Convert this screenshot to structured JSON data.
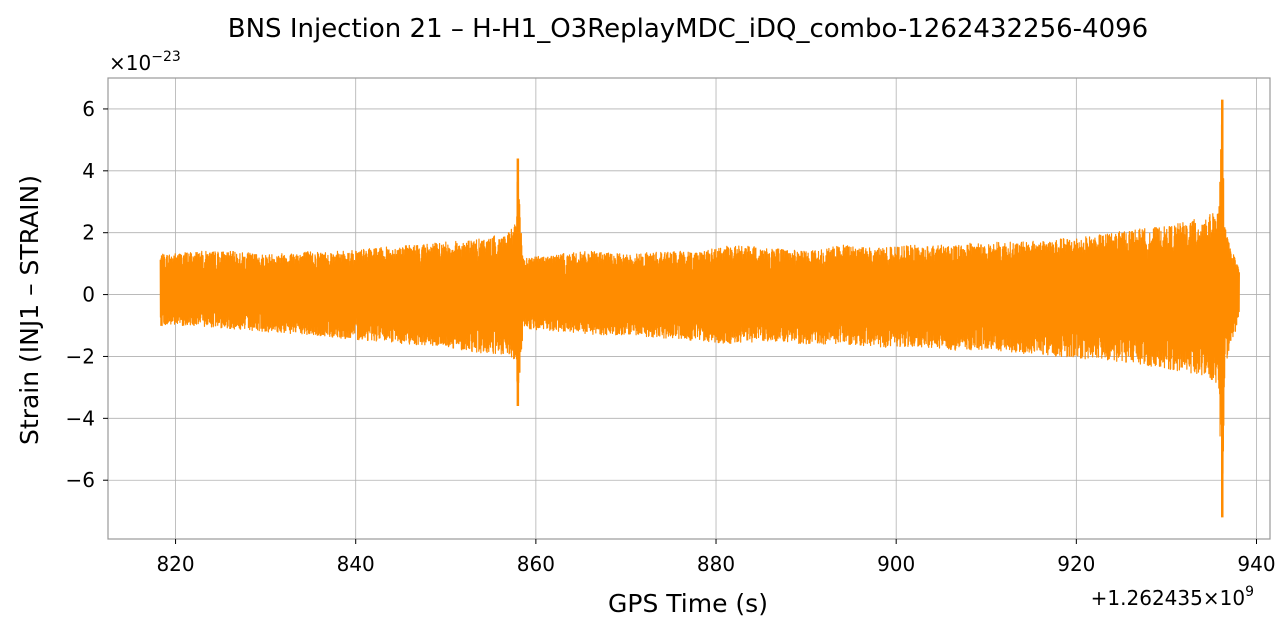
{
  "chart_data": {
    "type": "line",
    "title": "BNS Injection 21 – H-H1_O3ReplayMDC_iDQ_combo-1262432256-4096",
    "xlabel": "GPS Time (s)",
    "ylabel": "Strain (INJ1 – STRAIN)",
    "x_offset_label": "+1.262435×10",
    "x_offset_exponent": "9",
    "y_scale_label": "×10",
    "y_scale_exponent": "−23",
    "xlim": [
      812.5,
      941.5
    ],
    "ylim": [
      -7.9,
      7.0
    ],
    "x_ticks": [
      820,
      840,
      860,
      880,
      900,
      920,
      940
    ],
    "x_tick_labels": [
      "820",
      "840",
      "860",
      "880",
      "900",
      "920",
      "940"
    ],
    "y_ticks": [
      -6,
      -4,
      -2,
      0,
      2,
      4,
      6
    ],
    "y_tick_labels": [
      "−6",
      "−4",
      "−2",
      "0",
      "2",
      "4",
      "6"
    ],
    "grid": true,
    "line_color": "#ff8c00",
    "series": [
      {
        "name": "",
        "envelope_upper": [
          [
            818.3,
            1.3
          ],
          [
            822,
            1.4
          ],
          [
            826,
            1.4
          ],
          [
            830,
            1.3
          ],
          [
            834,
            1.4
          ],
          [
            838,
            1.4
          ],
          [
            842,
            1.5
          ],
          [
            846,
            1.6
          ],
          [
            850,
            1.7
          ],
          [
            854,
            1.8
          ],
          [
            857.0,
            2.0
          ],
          [
            857.8,
            2.4
          ],
          [
            858.0,
            4.4
          ],
          [
            858.3,
            2.4
          ],
          [
            858.6,
            1.2
          ],
          [
            862,
            1.3
          ],
          [
            866,
            1.4
          ],
          [
            870,
            1.3
          ],
          [
            874,
            1.4
          ],
          [
            878,
            1.4
          ],
          [
            882,
            1.6
          ],
          [
            886,
            1.5
          ],
          [
            890,
            1.4
          ],
          [
            894,
            1.6
          ],
          [
            898,
            1.5
          ],
          [
            902,
            1.6
          ],
          [
            906,
            1.6
          ],
          [
            910,
            1.7
          ],
          [
            914,
            1.7
          ],
          [
            918,
            1.8
          ],
          [
            922,
            1.9
          ],
          [
            926,
            2.1
          ],
          [
            930,
            2.2
          ],
          [
            934,
            2.5
          ],
          [
            935.8,
            2.7
          ],
          [
            936.2,
            6.3
          ],
          [
            936.5,
            2.2
          ],
          [
            937.0,
            1.6
          ],
          [
            937.6,
            1.2
          ],
          [
            938.1,
            0.8
          ]
        ],
        "envelope_lower": [
          [
            818.3,
            -1.0
          ],
          [
            822,
            -1.0
          ],
          [
            826,
            -1.1
          ],
          [
            830,
            -1.2
          ],
          [
            834,
            -1.3
          ],
          [
            838,
            -1.4
          ],
          [
            842,
            -1.5
          ],
          [
            846,
            -1.6
          ],
          [
            850,
            -1.7
          ],
          [
            854,
            -1.9
          ],
          [
            857.0,
            -2.0
          ],
          [
            857.8,
            -2.2
          ],
          [
            858.0,
            -3.6
          ],
          [
            858.3,
            -2.3
          ],
          [
            858.6,
            -1.1
          ],
          [
            862,
            -1.2
          ],
          [
            866,
            -1.3
          ],
          [
            870,
            -1.3
          ],
          [
            874,
            -1.4
          ],
          [
            878,
            -1.5
          ],
          [
            882,
            -1.6
          ],
          [
            886,
            -1.5
          ],
          [
            890,
            -1.6
          ],
          [
            894,
            -1.6
          ],
          [
            898,
            -1.7
          ],
          [
            902,
            -1.7
          ],
          [
            906,
            -1.8
          ],
          [
            910,
            -1.8
          ],
          [
            914,
            -1.9
          ],
          [
            918,
            -2.0
          ],
          [
            922,
            -2.1
          ],
          [
            926,
            -2.2
          ],
          [
            930,
            -2.4
          ],
          [
            934,
            -2.6
          ],
          [
            935.8,
            -2.9
          ],
          [
            936.2,
            -7.2
          ],
          [
            936.5,
            -2.4
          ],
          [
            937.0,
            -1.8
          ],
          [
            937.6,
            -1.3
          ],
          [
            938.1,
            -0.6
          ]
        ]
      }
    ]
  }
}
